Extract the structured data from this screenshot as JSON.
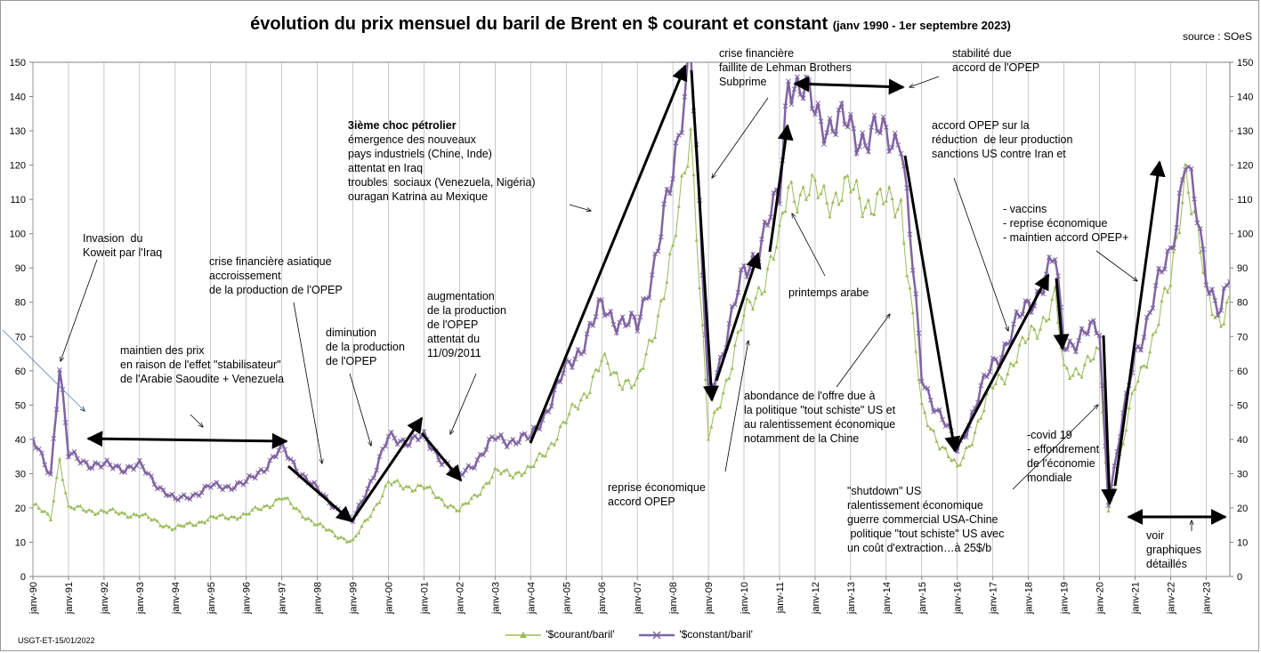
{
  "title": "évolution du prix mensuel du baril de Brent en $ courant et constant",
  "title_suffix": "(janv 1990 -  1er septembre 2023)",
  "source": "source : SOeS",
  "reference": "USGT-ET-15/01/2022",
  "colors": {
    "courant": "#9bbb59",
    "constant": "#8064a2",
    "grid": "#a6a6a6",
    "arrow": "#000000"
  },
  "chart_data": {
    "type": "line",
    "title": "évolution du prix mensuel du baril de Brent en $ courant et constant",
    "ylim": [
      0,
      150
    ],
    "yticks": [
      0,
      10,
      20,
      30,
      40,
      50,
      60,
      70,
      80,
      90,
      100,
      110,
      120,
      130,
      140,
      150
    ],
    "xlim": [
      "janv-90",
      "sept-23"
    ],
    "x_tick_labels": [
      "janv-90",
      "janv-91",
      "janv-92",
      "janv-93",
      "janv-94",
      "janv-95",
      "janv-96",
      "janv-97",
      "janv-98",
      "janv-99",
      "janv-00",
      "janv-01",
      "janv-02",
      "janv-03",
      "janv-04",
      "janv-05",
      "janv-06",
      "janv-07",
      "janv-08",
      "janv-09",
      "janv-10",
      "janv-11",
      "janv-12",
      "janv-13",
      "janv-14",
      "janv-15",
      "janv-16",
      "janv-17",
      "janv-18",
      "janv-19",
      "janv-20",
      "janv-21",
      "janv-22",
      "janv-23"
    ],
    "grid": "vertical",
    "legend_position": "bottom",
    "series": [
      {
        "name": "'$courant/baril'",
        "marker": "triangle",
        "points": [
          [
            "janv-90",
            21
          ],
          [
            "juil-90",
            17
          ],
          [
            "oct-90",
            35
          ],
          [
            "janv-91",
            20
          ],
          [
            "janv-92",
            19
          ],
          [
            "janv-93",
            18
          ],
          [
            "janv-94",
            14
          ],
          [
            "janv-95",
            17
          ],
          [
            "janv-96",
            18
          ],
          [
            "janv-97",
            23
          ],
          [
            "janv-98",
            15
          ],
          [
            "janv-99",
            10
          ],
          [
            "janv-00",
            27
          ],
          [
            "janv-01",
            26
          ],
          [
            "janv-02",
            19
          ],
          [
            "janv-03",
            30
          ],
          [
            "janv-04",
            31
          ],
          [
            "janv-05",
            45
          ],
          [
            "janv-06",
            62
          ],
          [
            "janv-07",
            55
          ],
          [
            "janv-08",
            93
          ],
          [
            "juil-08",
            133
          ],
          [
            "janv-09",
            40
          ],
          [
            "janv-10",
            75
          ],
          [
            "janv-11",
            97
          ],
          [
            "avr-11",
            114
          ],
          [
            "janv-12",
            111
          ],
          [
            "janv-13",
            112
          ],
          [
            "janv-14",
            108
          ],
          [
            "juin-14",
            110
          ],
          [
            "janv-15",
            48
          ],
          [
            "janv-16",
            31
          ],
          [
            "janv-17",
            55
          ],
          [
            "janv-18",
            69
          ],
          [
            "oct-18",
            81
          ],
          [
            "janv-19",
            59
          ],
          [
            "janv-20",
            64
          ],
          [
            "avr-20",
            19
          ],
          [
            "janv-21",
            55
          ],
          [
            "janv-22",
            85
          ],
          [
            "juin-22",
            120
          ],
          [
            "janv-23",
            83
          ],
          [
            "juin-23",
            75
          ],
          [
            "sept-23",
            82
          ]
        ]
      },
      {
        "name": "'$constant/baril'",
        "marker": "cross",
        "points": [
          [
            "janv-90",
            39
          ],
          [
            "juil-90",
            30
          ],
          [
            "oct-90",
            62
          ],
          [
            "janv-91",
            35
          ],
          [
            "janv-92",
            32
          ],
          [
            "janv-93",
            32
          ],
          [
            "janv-94",
            22
          ],
          [
            "janv-95",
            26
          ],
          [
            "janv-96",
            27
          ],
          [
            "janv-97",
            37
          ],
          [
            "janv-98",
            25
          ],
          [
            "janv-99",
            16
          ],
          [
            "janv-00",
            40
          ],
          [
            "janv-01",
            40
          ],
          [
            "janv-02",
            29
          ],
          [
            "janv-03",
            40
          ],
          [
            "janv-04",
            40
          ],
          [
            "janv-05",
            60
          ],
          [
            "janv-06",
            78
          ],
          [
            "janv-07",
            72
          ],
          [
            "janv-08",
            115
          ],
          [
            "juil-08",
            158
          ],
          [
            "janv-09",
            52
          ],
          [
            "janv-10",
            88
          ],
          [
            "janv-11",
            110
          ],
          [
            "avr-11",
            148
          ],
          [
            "janv-12",
            135
          ],
          [
            "janv-13",
            130
          ],
          [
            "janv-14",
            128
          ],
          [
            "juin-14",
            130
          ],
          [
            "janv-15",
            58
          ],
          [
            "janv-16",
            37
          ],
          [
            "janv-17",
            62
          ],
          [
            "janv-18",
            79
          ],
          [
            "oct-18",
            92
          ],
          [
            "janv-19",
            68
          ],
          [
            "janv-20",
            72
          ],
          [
            "avr-20",
            22
          ],
          [
            "janv-21",
            65
          ],
          [
            "janv-22",
            95
          ],
          [
            "juin-22",
            123
          ],
          [
            "janv-23",
            88
          ],
          [
            "juin-23",
            78
          ],
          [
            "sept-23",
            86
          ]
        ]
      }
    ]
  },
  "annotations": [
    "Invasion  du\nKoweit par l'Iraq",
    "maintien des prix\nen raison de l'effet \"stabilisateur\"\nde l'Arabie Saoudite + Venezuela",
    "crise financière asiatique\naccroissement\nde la production de l'OPEP",
    "diminution\nde la production\nde l'OPEP",
    "augmentation\nde la production\nde l'OPEP\nattentat du\n11/09/2011",
    "3ième choc pétrolier",
    "émergence des nouveaux\npays industriels (Chine, Inde)\nattentat en Iraq\ntroubles  sociaux (Venezuela, Nigéria)\nouragan Katrina au Mexique",
    "crise financière\nfaillite de Lehman Brothers\nSubprime",
    "stabilité due\naccord de l'OPEP",
    "accord OPEP sur la\nréduction  de leur production\nsanctions US contre Iran et",
    "printemps arabe",
    "abondance de l'offre due à\nla politique \"tout schiste\" US et\nau ralentissement économique\nnotamment de la Chine",
    "reprise économique\naccord OPEP",
    "\"shutdown\" US\nralentissement économique\nguerre commercial USA-Chine\n politique \"tout schiste\" US avec\nun coût d'extraction…à 25$/b",
    "-covid 19\n- effondrement\nde l'économie\nmondiale",
    "- vaccins\n- reprise économique\n- maintien accord OPEP+",
    "voir\ngraphiques\ndétaillés"
  ]
}
